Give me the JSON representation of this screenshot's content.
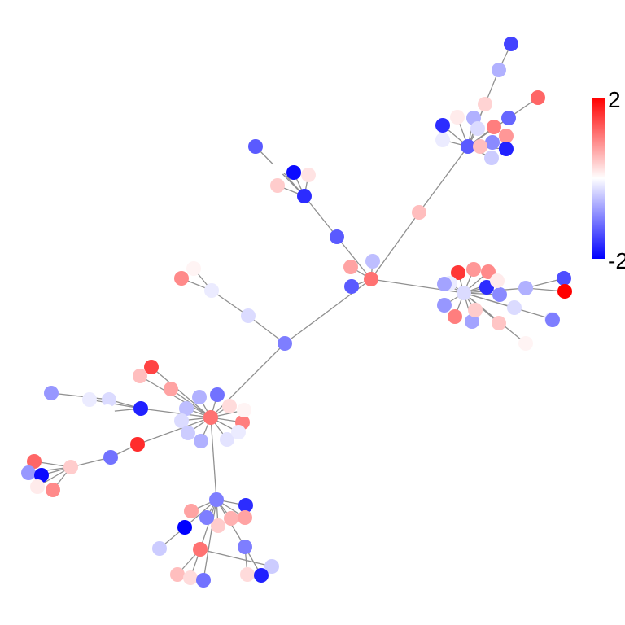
{
  "colorbar": {
    "max_label": "2",
    "min_label": "-2",
    "max_value": 2,
    "min_value": -2,
    "low_color": "#0000ff",
    "mid_color": "#ffffff",
    "high_color": "#ff0000"
  },
  "nodes": [
    {
      "id": "hub_center",
      "value": 1.0
    },
    {
      "id": "c1",
      "value": 0.6
    },
    {
      "id": "c2",
      "value": -0.4
    },
    {
      "id": "c3",
      "value": -1.2
    },
    {
      "id": "n_upper_link",
      "value": -1.2
    },
    {
      "id": "u_hub",
      "value": -1.6
    },
    {
      "id": "u1",
      "value": -1.9
    },
    {
      "id": "u2",
      "value": -1.2
    },
    {
      "id": "u3",
      "value": 0.3
    },
    {
      "id": "u4",
      "value": 0.15
    },
    {
      "id": "u5",
      "value": 0.0
    },
    {
      "id": "tr_link",
      "value": 0.4
    },
    {
      "id": "tr_hub",
      "value": -1.2
    },
    {
      "id": "tr_top2",
      "value": -0.5
    },
    {
      "id": "tr_top1",
      "value": -1.4
    },
    {
      "id": "tr1",
      "value": 0.25
    },
    {
      "id": "tr2",
      "value": -1.6
    },
    {
      "id": "tr3",
      "value": -0.1
    },
    {
      "id": "tr4",
      "value": -0.5
    },
    {
      "id": "tr5",
      "value": 0.1
    },
    {
      "id": "tr6",
      "value": 0.9
    },
    {
      "id": "tr7",
      "value": -0.2
    },
    {
      "id": "tr8",
      "value": -1.1
    },
    {
      "id": "tr9",
      "value": -0.8
    },
    {
      "id": "tr10",
      "value": 0.7
    },
    {
      "id": "tr11",
      "value": -1.7
    },
    {
      "id": "tr12",
      "value": -0.3
    },
    {
      "id": "tr13",
      "value": 0.4
    },
    {
      "id": "tr14",
      "value": 1.1
    },
    {
      "id": "r_hub",
      "value": -0.2
    },
    {
      "id": "r1",
      "value": 1.5
    },
    {
      "id": "r2",
      "value": 0.7
    },
    {
      "id": "r3",
      "value": 0.8
    },
    {
      "id": "r4",
      "value": -0.1
    },
    {
      "id": "r5",
      "value": -0.6
    },
    {
      "id": "r6",
      "value": -1.6
    },
    {
      "id": "r7",
      "value": -0.8
    },
    {
      "id": "r8",
      "value": -0.7
    },
    {
      "id": "r9",
      "value": 0.1
    },
    {
      "id": "r10",
      "value": -0.6
    },
    {
      "id": "r11",
      "value": 0.3
    },
    {
      "id": "r12",
      "value": -0.2
    },
    {
      "id": "r13",
      "value": 0.35
    },
    {
      "id": "r14",
      "value": -0.5
    },
    {
      "id": "r15",
      "value": -0.1
    },
    {
      "id": "r16",
      "value": 0.05
    },
    {
      "id": "r17",
      "value": -1.3
    },
    {
      "id": "r18",
      "value": 2.0
    },
    {
      "id": "r19",
      "value": -0.9
    },
    {
      "id": "r20",
      "value": 0.9
    },
    {
      "id": "l_link1",
      "value": -0.1
    },
    {
      "id": "l_link2",
      "value": -0.2
    },
    {
      "id": "l1",
      "value": 0.05
    },
    {
      "id": "l2",
      "value": 0.8
    },
    {
      "id": "mid",
      "value": -0.9
    },
    {
      "id": "ll_hub",
      "value": 1.0
    },
    {
      "id": "ll1",
      "value": 1.4
    },
    {
      "id": "ll2",
      "value": 0.4
    },
    {
      "id": "ll3",
      "value": 0.6
    },
    {
      "id": "ll4",
      "value": -1.0
    },
    {
      "id": "ll5",
      "value": -0.5
    },
    {
      "id": "ll6",
      "value": -0.4
    },
    {
      "id": "ll7",
      "value": -0.2
    },
    {
      "id": "ll8",
      "value": 0.9
    },
    {
      "id": "ll9",
      "value": 0.2
    },
    {
      "id": "ll10",
      "value": 0.05
    },
    {
      "id": "ll11",
      "value": -0.5
    },
    {
      "id": "ll12",
      "value": -0.3
    },
    {
      "id": "ll13",
      "value": -0.15
    },
    {
      "id": "ll14",
      "value": -0.1
    },
    {
      "id": "lw1",
      "value": -0.1
    },
    {
      "id": "lw2",
      "value": -0.2
    },
    {
      "id": "lw3",
      "value": -0.7
    },
    {
      "id": "lw4",
      "value": -1.7
    },
    {
      "id": "lw5",
      "value": 0.0
    },
    {
      "id": "lf_link1",
      "value": 1.6
    },
    {
      "id": "lf_link2",
      "value": -1.0
    },
    {
      "id": "lf_hub",
      "value": 0.3
    },
    {
      "id": "lf1",
      "value": 1.1
    },
    {
      "id": "lf2",
      "value": -0.7
    },
    {
      "id": "lf3",
      "value": -1.9
    },
    {
      "id": "lf4",
      "value": 0.1
    },
    {
      "id": "lf5",
      "value": 0.8
    },
    {
      "id": "b_hub",
      "value": -0.9
    },
    {
      "id": "b1",
      "value": -1.6
    },
    {
      "id": "b2",
      "value": 0.5
    },
    {
      "id": "b3",
      "value": 0.3
    },
    {
      "id": "b4",
      "value": 0.6
    },
    {
      "id": "b5",
      "value": -0.9
    },
    {
      "id": "b6",
      "value": -2.0
    },
    {
      "id": "b7",
      "value": 0.6
    },
    {
      "id": "b8",
      "value": -0.3
    },
    {
      "id": "b9",
      "value": 1.0
    },
    {
      "id": "b10",
      "value": 0.4
    },
    {
      "id": "b11",
      "value": 0.2
    },
    {
      "id": "b12",
      "value": -1.0
    },
    {
      "id": "b13",
      "value": -0.9
    },
    {
      "id": "b14",
      "value": -0.3
    },
    {
      "id": "b15",
      "value": 0.2
    },
    {
      "id": "b16",
      "value": -1.7
    }
  ],
  "edges": [
    [
      "hub_center",
      "c1"
    ],
    [
      "hub_center",
      "c2"
    ],
    [
      "hub_center",
      "c3"
    ],
    [
      "hub_center",
      "n_upper_link"
    ],
    [
      "n_upper_link",
      "u_hub"
    ],
    [
      "u_hub",
      "u1"
    ],
    [
      "u_hub",
      "u2"
    ],
    [
      "u_hub",
      "u3"
    ],
    [
      "u_hub",
      "u4"
    ],
    [
      "u_hub",
      "u5"
    ],
    [
      "hub_center",
      "tr_link"
    ],
    [
      "tr_link",
      "tr_hub"
    ],
    [
      "tr_hub",
      "tr_top2"
    ],
    [
      "tr_top2",
      "tr_top1"
    ],
    [
      "tr_hub",
      "tr1"
    ],
    [
      "tr_hub",
      "tr2"
    ],
    [
      "tr_hub",
      "tr3"
    ],
    [
      "tr_hub",
      "tr4"
    ],
    [
      "tr_hub",
      "tr5"
    ],
    [
      "tr_hub",
      "tr6"
    ],
    [
      "tr_hub",
      "tr7"
    ],
    [
      "tr_hub",
      "tr8"
    ],
    [
      "tr_hub",
      "tr9"
    ],
    [
      "tr_hub",
      "tr10"
    ],
    [
      "tr_hub",
      "tr11"
    ],
    [
      "tr_hub",
      "tr12"
    ],
    [
      "tr_hub",
      "tr13"
    ],
    [
      "tr_hub",
      "tr14"
    ],
    [
      "hub_center",
      "r_hub"
    ],
    [
      "r_hub",
      "r1"
    ],
    [
      "r_hub",
      "r2"
    ],
    [
      "r_hub",
      "r3"
    ],
    [
      "r_hub",
      "r4"
    ],
    [
      "r_hub",
      "r5"
    ],
    [
      "r_hub",
      "r6"
    ],
    [
      "r_hub",
      "r7"
    ],
    [
      "r_hub",
      "r8"
    ],
    [
      "r_hub",
      "r9"
    ],
    [
      "r_hub",
      "r10"
    ],
    [
      "r_hub",
      "r11"
    ],
    [
      "r_hub",
      "r12"
    ],
    [
      "r_hub",
      "r13"
    ],
    [
      "r_hub",
      "r14"
    ],
    [
      "r_hub",
      "r15"
    ],
    [
      "r_hub",
      "r16"
    ],
    [
      "r_hub",
      "r20"
    ],
    [
      "r14",
      "r17"
    ],
    [
      "r14",
      "r18"
    ],
    [
      "r15",
      "r19"
    ],
    [
      "hub_center",
      "mid"
    ],
    [
      "mid",
      "l_link2"
    ],
    [
      "l_link2",
      "l_link1"
    ],
    [
      "l_link1",
      "l1"
    ],
    [
      "l_link1",
      "l2"
    ],
    [
      "mid",
      "ll_hub"
    ],
    [
      "ll_hub",
      "ll1"
    ],
    [
      "ll_hub",
      "ll2"
    ],
    [
      "ll_hub",
      "ll3"
    ],
    [
      "ll_hub",
      "ll4"
    ],
    [
      "ll_hub",
      "ll5"
    ],
    [
      "ll_hub",
      "ll6"
    ],
    [
      "ll_hub",
      "ll7"
    ],
    [
      "ll_hub",
      "ll8"
    ],
    [
      "ll_hub",
      "ll9"
    ],
    [
      "ll_hub",
      "ll10"
    ],
    [
      "ll_hub",
      "ll11"
    ],
    [
      "ll_hub",
      "ll12"
    ],
    [
      "ll_hub",
      "ll13"
    ],
    [
      "ll_hub",
      "ll14"
    ],
    [
      "ll_hub",
      "lw4"
    ],
    [
      "lw4",
      "lw1"
    ],
    [
      "lw4",
      "lw2"
    ],
    [
      "lw4",
      "lw5"
    ],
    [
      "lw2",
      "lw3"
    ],
    [
      "ll_hub",
      "lf_link1"
    ],
    [
      "lf_link1",
      "lf_link2"
    ],
    [
      "lf_link2",
      "lf_hub"
    ],
    [
      "lf_hub",
      "lf1"
    ],
    [
      "lf_hub",
      "lf2"
    ],
    [
      "lf_hub",
      "lf3"
    ],
    [
      "lf_hub",
      "lf4"
    ],
    [
      "lf_hub",
      "lf5"
    ],
    [
      "ll_hub",
      "b_hub"
    ],
    [
      "b_hub",
      "b1"
    ],
    [
      "b_hub",
      "b2"
    ],
    [
      "b_hub",
      "b3"
    ],
    [
      "b_hub",
      "b4"
    ],
    [
      "b_hub",
      "b5"
    ],
    [
      "b_hub",
      "b6"
    ],
    [
      "b_hub",
      "b7"
    ],
    [
      "b_hub",
      "b9"
    ],
    [
      "b_hub",
      "b12"
    ],
    [
      "b_hub",
      "b13"
    ],
    [
      "b6",
      "b8"
    ],
    [
      "b9",
      "b10"
    ],
    [
      "b9",
      "b11"
    ],
    [
      "b9",
      "b14"
    ],
    [
      "b13",
      "b15"
    ],
    [
      "b13",
      "b16"
    ]
  ]
}
